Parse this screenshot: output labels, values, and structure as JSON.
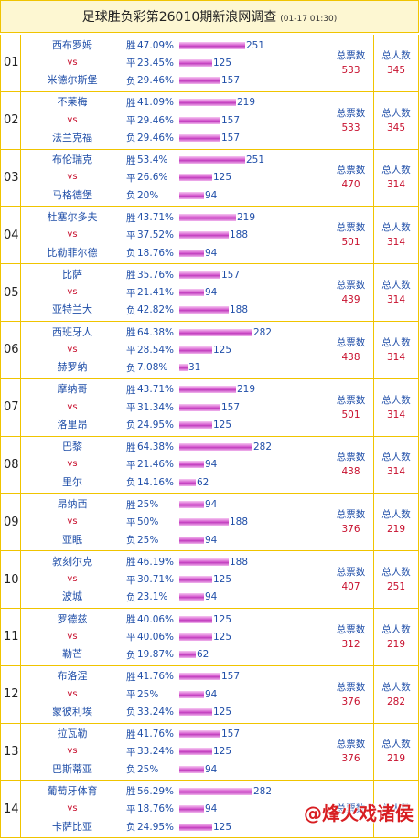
{
  "header": {
    "title": "足球胜负彩第26010期新浪网调查",
    "time": "(01-17 01:30)"
  },
  "labels": {
    "vs": "vs",
    "total_votes": "总票数",
    "total_people": "总人数",
    "win": "胜",
    "draw": "平",
    "loss": "负"
  },
  "matches": [
    {
      "num": "01",
      "home": "西布罗姆",
      "away": "米德尔斯堡",
      "win_pct": "47.09%",
      "win_n": "251",
      "draw_pct": "23.45%",
      "draw_n": "125",
      "loss_pct": "29.46%",
      "loss_n": "157",
      "votes": "533",
      "people": "345"
    },
    {
      "num": "02",
      "home": "不莱梅",
      "away": "法兰克福",
      "win_pct": "41.09%",
      "win_n": "219",
      "draw_pct": "29.46%",
      "draw_n": "157",
      "loss_pct": "29.46%",
      "loss_n": "157",
      "votes": "533",
      "people": "345"
    },
    {
      "num": "03",
      "home": "布伦瑞克",
      "away": "马格德堡",
      "win_pct": "53.4%",
      "win_n": "251",
      "draw_pct": "26.6%",
      "draw_n": "125",
      "loss_pct": "20%",
      "loss_n": "94",
      "votes": "470",
      "people": "314"
    },
    {
      "num": "04",
      "home": "杜塞尔多夫",
      "away": "比勒菲尔德",
      "win_pct": "43.71%",
      "win_n": "219",
      "draw_pct": "37.52%",
      "draw_n": "188",
      "loss_pct": "18.76%",
      "loss_n": "94",
      "votes": "501",
      "people": "314"
    },
    {
      "num": "05",
      "home": "比萨",
      "away": "亚特兰大",
      "win_pct": "35.76%",
      "win_n": "157",
      "draw_pct": "21.41%",
      "draw_n": "94",
      "loss_pct": "42.82%",
      "loss_n": "188",
      "votes": "439",
      "people": "314"
    },
    {
      "num": "06",
      "home": "西班牙人",
      "away": "赫罗纳",
      "win_pct": "64.38%",
      "win_n": "282",
      "draw_pct": "28.54%",
      "draw_n": "125",
      "loss_pct": "7.08%",
      "loss_n": "31",
      "votes": "438",
      "people": "314"
    },
    {
      "num": "07",
      "home": "摩纳哥",
      "away": "洛里昂",
      "win_pct": "43.71%",
      "win_n": "219",
      "draw_pct": "31.34%",
      "draw_n": "157",
      "loss_pct": "24.95%",
      "loss_n": "125",
      "votes": "501",
      "people": "314"
    },
    {
      "num": "08",
      "home": "巴黎",
      "away": "里尔",
      "win_pct": "64.38%",
      "win_n": "282",
      "draw_pct": "21.46%",
      "draw_n": "94",
      "loss_pct": "14.16%",
      "loss_n": "62",
      "votes": "438",
      "people": "314"
    },
    {
      "num": "09",
      "home": "昂纳西",
      "away": "亚眠",
      "win_pct": "25%",
      "win_n": "94",
      "draw_pct": "50%",
      "draw_n": "188",
      "loss_pct": "25%",
      "loss_n": "94",
      "votes": "376",
      "people": "219"
    },
    {
      "num": "10",
      "home": "敦刻尔克",
      "away": "波城",
      "win_pct": "46.19%",
      "win_n": "188",
      "draw_pct": "30.71%",
      "draw_n": "125",
      "loss_pct": "23.1%",
      "loss_n": "94",
      "votes": "407",
      "people": "251"
    },
    {
      "num": "11",
      "home": "罗德兹",
      "away": "勒芒",
      "win_pct": "40.06%",
      "win_n": "125",
      "draw_pct": "40.06%",
      "draw_n": "125",
      "loss_pct": "19.87%",
      "loss_n": "62",
      "votes": "312",
      "people": "219"
    },
    {
      "num": "12",
      "home": "布洛涅",
      "away": "蒙彼利埃",
      "win_pct": "41.76%",
      "win_n": "157",
      "draw_pct": "25%",
      "draw_n": "94",
      "loss_pct": "33.24%",
      "loss_n": "125",
      "votes": "376",
      "people": "282"
    },
    {
      "num": "13",
      "home": "拉瓦勒",
      "away": "巴斯蒂亚",
      "win_pct": "41.76%",
      "win_n": "157",
      "draw_pct": "33.24%",
      "draw_n": "125",
      "loss_pct": "25%",
      "loss_n": "94",
      "votes": "376",
      "people": "219"
    },
    {
      "num": "14",
      "home": "葡萄牙体育",
      "away": "卡萨比亚",
      "win_pct": "56.29%",
      "win_n": "282",
      "draw_pct": "18.76%",
      "draw_n": "94",
      "loss_pct": "24.95%",
      "loss_n": "125",
      "votes": "",
      "people": ""
    }
  ],
  "watermark": "@烽火戏诸侯"
}
